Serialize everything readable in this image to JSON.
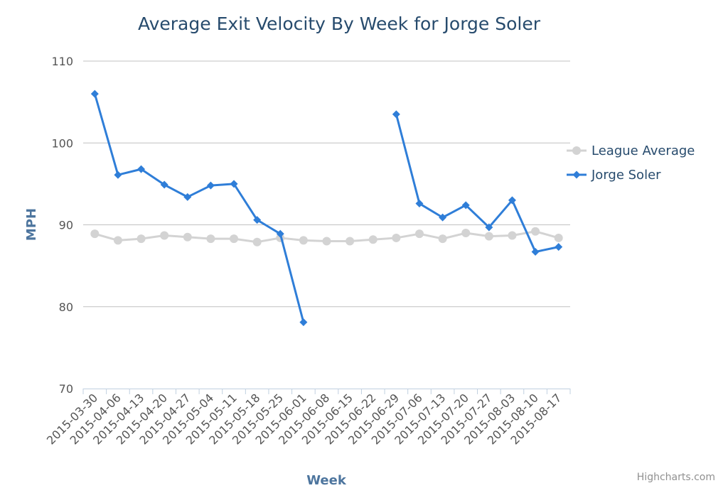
{
  "colors": {
    "title": "#274b6d",
    "axis_title": "#4d759e",
    "league": "#d3d3d3",
    "soler": "#2f7ed8",
    "grid": "#c0c0c0",
    "tick_text": "#555555",
    "credits": "#909090"
  },
  "credits": "Highcharts.com",
  "chart_data": {
    "type": "line",
    "title": "Average Exit Velocity By Week for Jorge Soler",
    "xlabel": "Week",
    "ylabel": "MPH",
    "ylim": [
      70,
      110
    ],
    "yticks": [
      70,
      80,
      90,
      100,
      110
    ],
    "grid": true,
    "legend_position": "right",
    "categories": [
      "2015-03-30",
      "2015-04-06",
      "2015-04-13",
      "2015-04-20",
      "2015-04-27",
      "2015-05-04",
      "2015-05-11",
      "2015-05-18",
      "2015-05-25",
      "2015-06-01",
      "2015-06-08",
      "2015-06-15",
      "2015-06-22",
      "2015-06-29",
      "2015-07-06",
      "2015-07-13",
      "2015-07-20",
      "2015-07-27",
      "2015-08-03",
      "2015-08-10",
      "2015-08-17"
    ],
    "series": [
      {
        "name": "League Average",
        "marker": "circle",
        "color": "#d3d3d3",
        "values": [
          88.9,
          88.1,
          88.3,
          88.7,
          88.5,
          88.3,
          88.3,
          87.9,
          88.4,
          88.1,
          88.0,
          88.0,
          88.2,
          88.4,
          88.9,
          88.3,
          89.0,
          88.6,
          88.7,
          89.2,
          88.4
        ]
      },
      {
        "name": "Jorge Soler",
        "marker": "diamond",
        "color": "#2f7ed8",
        "values": [
          106.0,
          96.1,
          96.8,
          94.9,
          93.4,
          94.8,
          95.0,
          90.6,
          88.9,
          78.1,
          null,
          null,
          null,
          103.5,
          92.6,
          90.9,
          92.4,
          89.7,
          93.0,
          86.7,
          87.3
        ]
      }
    ]
  }
}
